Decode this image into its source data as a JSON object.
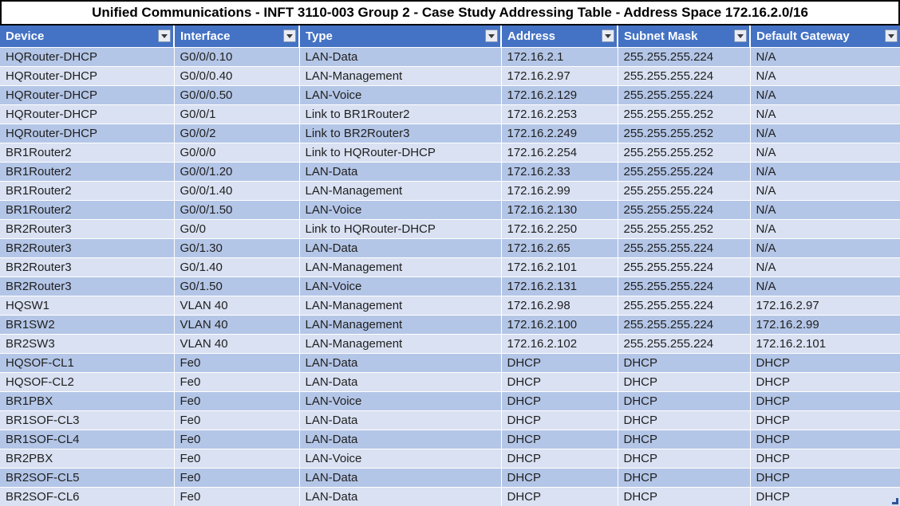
{
  "title": "Unified Communications - INFT 3110-003 Group 2 - Case Study Addressing Table - Address Space 172.16.2.0/16",
  "icons": {
    "filter_dropdown": "filter-dropdown-arrow"
  },
  "colors": {
    "header_bg": "#4472C4",
    "header_text": "#FFFFFF",
    "band_dark": "#B4C6E7",
    "band_light": "#D9E1F2",
    "body_text": "#1F1F1F",
    "grid_line": "#FFFFFF",
    "title_border": "#000000",
    "resize_handle": "#2E5596"
  },
  "table": {
    "columns": [
      "Device",
      "Interface",
      "Type",
      "Address",
      "Subnet Mask",
      "Default Gateway"
    ],
    "rows": [
      [
        "HQRouter-DHCP",
        "G0/0/0.10",
        "LAN-Data",
        "172.16.2.1",
        "255.255.255.224",
        "N/A"
      ],
      [
        "HQRouter-DHCP",
        "G0/0/0.40",
        "LAN-Management",
        "172.16.2.97",
        "255.255.255.224",
        "N/A"
      ],
      [
        "HQRouter-DHCP",
        "G0/0/0.50",
        "LAN-Voice",
        "172.16.2.129",
        "255.255.255.224",
        "N/A"
      ],
      [
        "HQRouter-DHCP",
        "G0/0/1",
        "Link to BR1Router2",
        "172.16.2.253",
        "255.255.255.252",
        "N/A"
      ],
      [
        "HQRouter-DHCP",
        "G0/0/2",
        "Link to BR2Router3",
        "172.16.2.249",
        "255.255.255.252",
        "N/A"
      ],
      [
        "BR1Router2",
        "G0/0/0",
        "Link to HQRouter-DHCP",
        "172.16.2.254",
        "255.255.255.252",
        "N/A"
      ],
      [
        "BR1Router2",
        "G0/0/1.20",
        "LAN-Data",
        "172.16.2.33",
        "255.255.255.224",
        "N/A"
      ],
      [
        "BR1Router2",
        "G0/0/1.40",
        "LAN-Management",
        "172.16.2.99",
        "255.255.255.224",
        "N/A"
      ],
      [
        "BR1Router2",
        "G0/0/1.50",
        "LAN-Voice",
        "172.16.2.130",
        "255.255.255.224",
        "N/A"
      ],
      [
        "BR2Router3",
        "G0/0",
        "Link to HQRouter-DHCP",
        "172.16.2.250",
        "255.255.255.252",
        "N/A"
      ],
      [
        "BR2Router3",
        "G0/1.30",
        "LAN-Data",
        "172.16.2.65",
        "255.255.255.224",
        "N/A"
      ],
      [
        "BR2Router3",
        "G0/1.40",
        "LAN-Management",
        "172.16.2.101",
        "255.255.255.224",
        "N/A"
      ],
      [
        "BR2Router3",
        "G0/1.50",
        "LAN-Voice",
        "172.16.2.131",
        "255.255.255.224",
        "N/A"
      ],
      [
        "HQSW1",
        "VLAN 40",
        "LAN-Management",
        "172.16.2.98",
        "255.255.255.224",
        "172.16.2.97"
      ],
      [
        "BR1SW2",
        "VLAN 40",
        "LAN-Management",
        "172.16.2.100",
        "255.255.255.224",
        "172.16.2.99"
      ],
      [
        "BR2SW3",
        "VLAN 40",
        "LAN-Management",
        "172.16.2.102",
        "255.255.255.224",
        "172.16.2.101"
      ],
      [
        "HQSOF-CL1",
        "Fe0",
        "LAN-Data",
        "DHCP",
        "DHCP",
        "DHCP"
      ],
      [
        "HQSOF-CL2",
        "Fe0",
        "LAN-Data",
        "DHCP",
        "DHCP",
        "DHCP"
      ],
      [
        "BR1PBX",
        "Fe0",
        "LAN-Voice",
        "DHCP",
        "DHCP",
        "DHCP"
      ],
      [
        "BR1SOF-CL3",
        "Fe0",
        "LAN-Data",
        "DHCP",
        "DHCP",
        "DHCP"
      ],
      [
        "BR1SOF-CL4",
        "Fe0",
        "LAN-Data",
        "DHCP",
        "DHCP",
        "DHCP"
      ],
      [
        "BR2PBX",
        "Fe0",
        "LAN-Voice",
        "DHCP",
        "DHCP",
        "DHCP"
      ],
      [
        "BR2SOF-CL5",
        "Fe0",
        "LAN-Data",
        "DHCP",
        "DHCP",
        "DHCP"
      ],
      [
        "BR2SOF-CL6",
        "Fe0",
        "LAN-Data",
        "DHCP",
        "DHCP",
        "DHCP"
      ]
    ]
  }
}
